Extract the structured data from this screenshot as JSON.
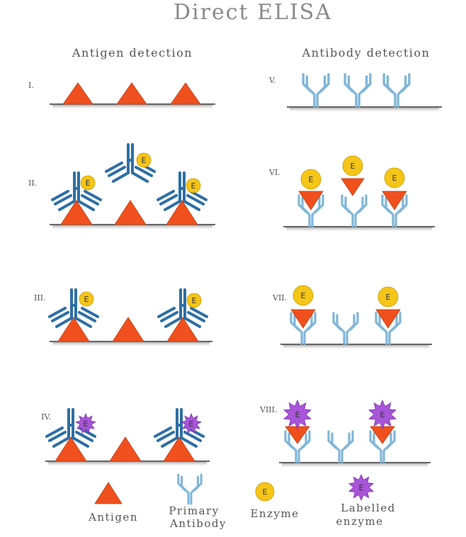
{
  "title": "Direct ELISA",
  "columns": {
    "left": "Antigen detection",
    "right": "Antibody detection"
  },
  "panels": {
    "p1": "I.",
    "p2": "II.",
    "p3": "III.",
    "p4": "IV.",
    "p5": "V.",
    "p6": "VI.",
    "p7": "VII.",
    "p8": "VIII."
  },
  "enzyme_letter": "E",
  "legend": {
    "antigen": "Antigen",
    "primary_antibody_line1": "Primary",
    "primary_antibody_line2": "Antibody",
    "enzyme": "Enzyme",
    "labelled_enzyme_line1": "Labelled",
    "labelled_enzyme_line2": "enzyme"
  },
  "colors": {
    "antigen": "#f0501e",
    "antibody_left": "#2d6fa6",
    "antibody_right": "#7fb6d8",
    "enzyme": "#f5c518",
    "labelled_enzyme": "#a855d8",
    "surface": "#333333"
  }
}
